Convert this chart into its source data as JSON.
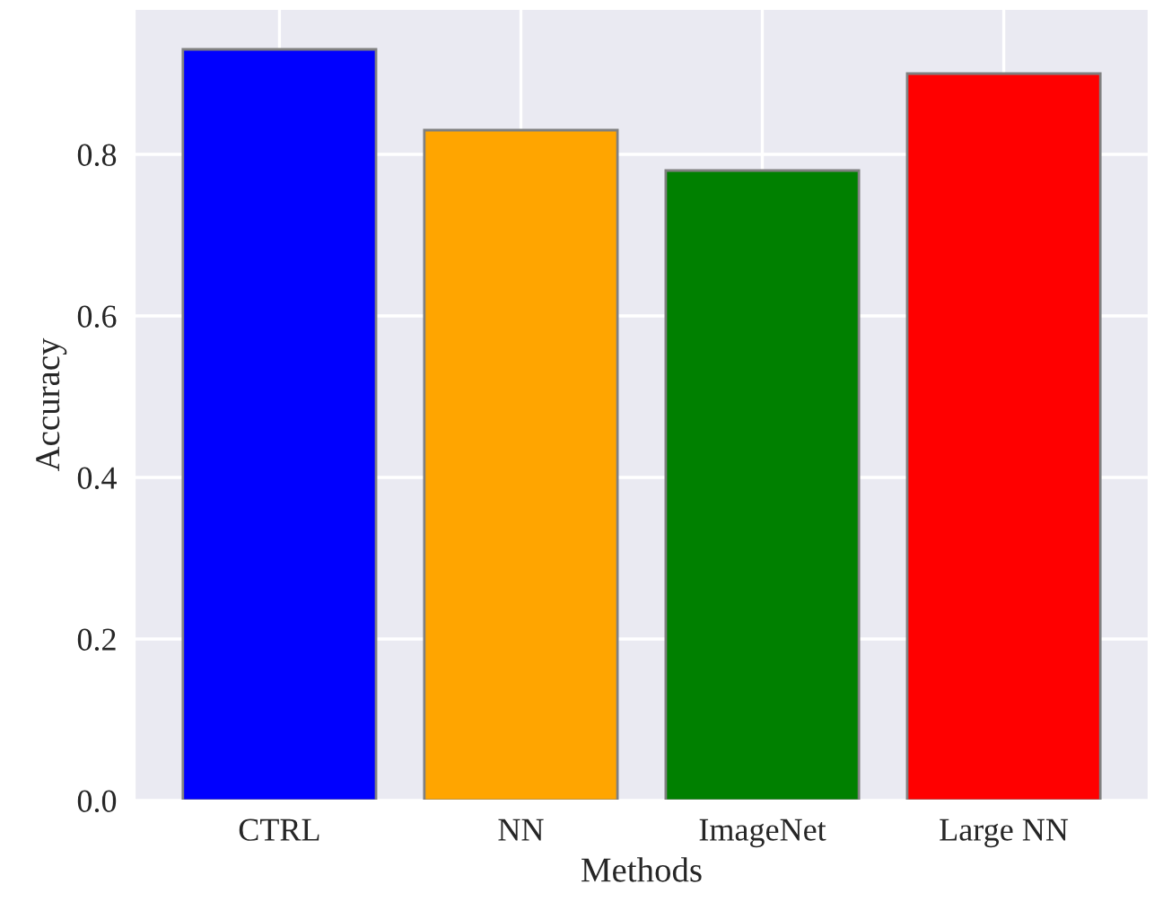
{
  "chart_data": {
    "type": "bar",
    "xlabel": "Methods",
    "ylabel": "Accuracy",
    "categories": [
      "CTRL",
      "NN",
      "ImageNet",
      "Large NN"
    ],
    "values": [
      0.93,
      0.83,
      0.78,
      0.9
    ],
    "colors": [
      "#0000ff",
      "#ffa500",
      "#008000",
      "#ff0000"
    ],
    "ylim": [
      0,
      0.98
    ],
    "yticks": [
      {
        "value": 0,
        "label": "0.0"
      },
      0.2,
      0.4,
      0.6,
      0.8
    ],
    "grid": true
  }
}
